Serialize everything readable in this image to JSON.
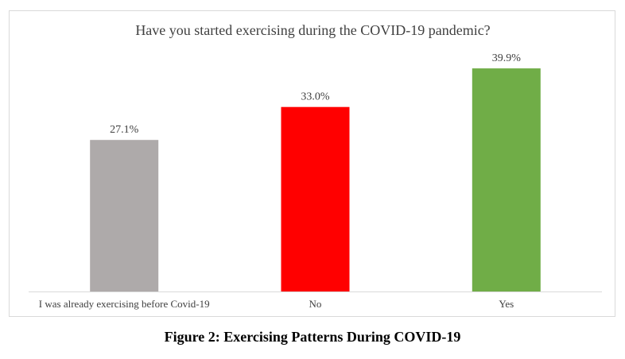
{
  "chart_data": {
    "type": "bar",
    "title": "Have you started exercising during the COVID-19 pandemic?",
    "categories": [
      "I was already exercising before Covid-19",
      "No",
      "Yes"
    ],
    "values": [
      27.1,
      33.0,
      39.9
    ],
    "data_labels": [
      "27.1%",
      "33.0%",
      "39.9%"
    ],
    "colors": [
      "#AEAAAA",
      "#FF0000",
      "#70AD47"
    ],
    "xlabel": "",
    "ylabel": "",
    "ylim": [
      0,
      45
    ],
    "grid": false,
    "legend": "none"
  },
  "caption": "Figure 2: Exercising Patterns During COVID-19"
}
